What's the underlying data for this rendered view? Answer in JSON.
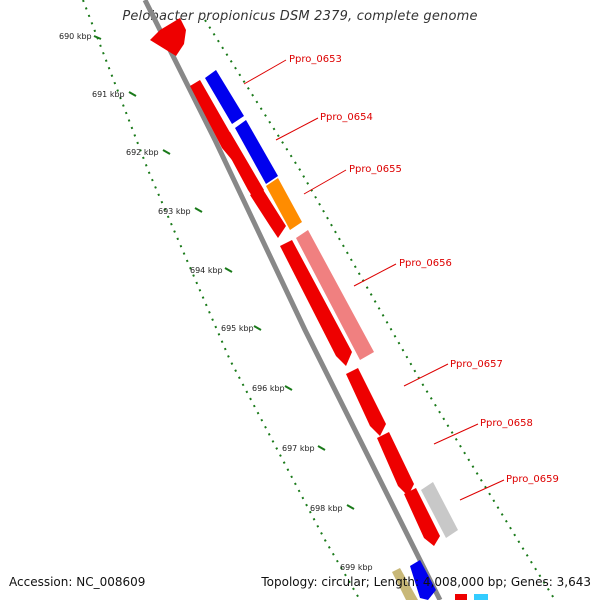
{
  "title": "Pelobacter propionicus DSM 2379, complete genome",
  "footer": {
    "accession": "Accession: NC_008609",
    "summary": "Topology: circular; Length: 4,008,000 bp; Genes: 3,643"
  },
  "ticks": [
    {
      "label": "690 kbp"
    },
    {
      "label": "691 kbp"
    },
    {
      "label": "692 kbp"
    },
    {
      "label": "693 kbp"
    },
    {
      "label": "694 kbp"
    },
    {
      "label": "695 kbp"
    },
    {
      "label": "696 kbp"
    },
    {
      "label": "697 kbp"
    },
    {
      "label": "698 kbp"
    },
    {
      "label": "699 kbp"
    }
  ],
  "gene_labels": [
    {
      "label": "Ppro_0653"
    },
    {
      "label": "Ppro_0654"
    },
    {
      "label": "Ppro_0655"
    },
    {
      "label": "Ppro_0656"
    },
    {
      "label": "Ppro_0657"
    },
    {
      "label": "Ppro_0658"
    },
    {
      "label": "Ppro_0659"
    }
  ],
  "colors": {
    "backbone": "#888888",
    "tick": "#1a7a1a",
    "gene_red": "#ee0000",
    "gene_blue": "#0000ee",
    "gene_orange": "#ff8c00",
    "gene_pink": "#f08080",
    "gene_grey": "#c8c8c8",
    "gene_tan": "#c8b878",
    "gene_cyan": "#33ccff",
    "label_line": "#dd0000"
  }
}
